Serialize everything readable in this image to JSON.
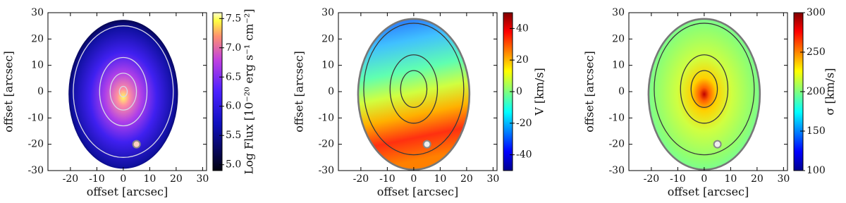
{
  "chart_data": [
    {
      "type": "image",
      "xlabel": "offset [arcsec]",
      "ylabel": "offset [arcsec]",
      "xlim": [
        -28.5,
        31.5
      ],
      "ylim": [
        -30,
        30
      ],
      "xticks": [
        -20,
        -10,
        0,
        10,
        20,
        30
      ],
      "yticks": [
        -30,
        -20,
        -10,
        0,
        10,
        20,
        30
      ],
      "colormap": "gnuplot2",
      "colorbar_label": "Log Flux [10⁻²⁰ erg s⁻¹ cm⁻²]",
      "clim": [
        4.9,
        7.6
      ],
      "cticks": [
        {
          "value": 5,
          "label": "5.0"
        },
        5.5,
        {
          "value": 6,
          "label": "6.0"
        },
        6.5,
        {
          "value": 7,
          "label": "7.0"
        },
        7.5
      ]
    },
    {
      "type": "image",
      "xlabel": "offset [arcsec]",
      "ylabel": "offset [arcsec]",
      "xlim": [
        -28.5,
        31.5
      ],
      "ylim": [
        -30,
        30
      ],
      "xticks": [
        -20,
        -10,
        0,
        10,
        20,
        30
      ],
      "yticks": [
        -30,
        -20,
        -10,
        0,
        10,
        20,
        30
      ],
      "colormap": "jet",
      "colorbar_label": "V [km/s]",
      "clim": [
        -50,
        50
      ],
      "cticks": [
        -40,
        -20,
        0,
        20,
        40
      ]
    },
    {
      "type": "image",
      "xlabel": "offset [arcsec]",
      "ylabel": "offset [arcsec]",
      "xlim": [
        -28.5,
        31.5
      ],
      "ylim": [
        -30,
        30
      ],
      "xticks": [
        -20,
        -10,
        0,
        10,
        20,
        30
      ],
      "yticks": [
        -30,
        -20,
        -10,
        0,
        10,
        20,
        30
      ],
      "colormap": "jet",
      "colorbar_label": "σ [km/s]",
      "clim": [
        100,
        300
      ],
      "cticks": [
        100,
        150,
        200,
        250,
        300
      ]
    }
  ]
}
